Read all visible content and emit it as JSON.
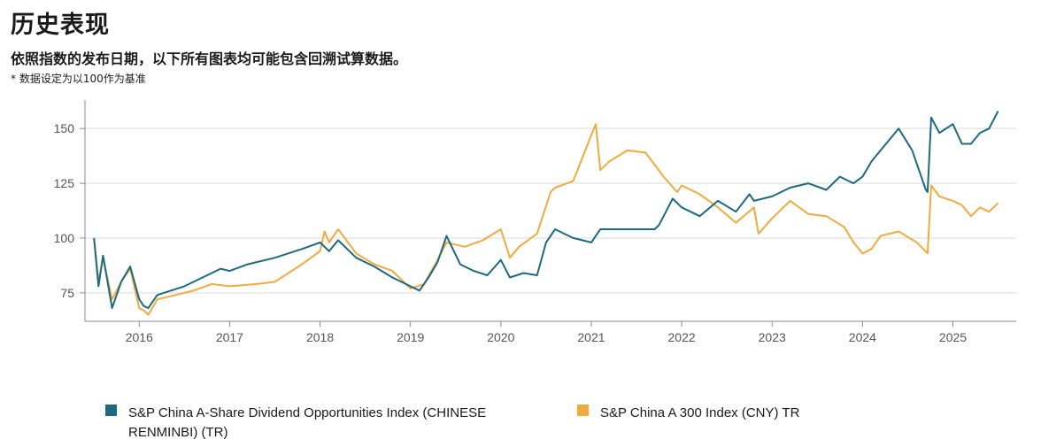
{
  "header": {
    "title": "历史表现",
    "subtitle": "依照指数的发布日期，以下所有图表均可能包含回溯试算数据。",
    "note": "* 数据设定为以100作为基准"
  },
  "chart_data": {
    "type": "line",
    "ylim": [
      62,
      163
    ],
    "xlim": [
      2015.4,
      2025.7
    ],
    "yticks": [
      75,
      100,
      125,
      150
    ],
    "xticks": [
      2016,
      2017,
      2018,
      2019,
      2020,
      2021,
      2022,
      2023,
      2024,
      2025
    ],
    "xticklabels": [
      "2016",
      "2017",
      "2018",
      "2019",
      "2020",
      "2021",
      "2022",
      "2023",
      "2024",
      "2025"
    ],
    "grid": "horizontal",
    "legend_position": "bottom",
    "series": [
      {
        "name": "S&P China A-Share Dividend Opportunities Index (CHINESE RENMINBI) (TR)",
        "color": "#1d6a80",
        "x": [
          2015.5,
          2015.55,
          2015.6,
          2015.7,
          2015.8,
          2015.9,
          2016.0,
          2016.05,
          2016.1,
          2016.2,
          2016.35,
          2016.5,
          2016.7,
          2016.9,
          2017.0,
          2017.2,
          2017.5,
          2017.8,
          2018.0,
          2018.1,
          2018.2,
          2018.4,
          2018.6,
          2018.8,
          2019.0,
          2019.1,
          2019.2,
          2019.3,
          2019.4,
          2019.55,
          2019.7,
          2019.85,
          2020.0,
          2020.1,
          2020.25,
          2020.4,
          2020.5,
          2020.6,
          2020.8,
          2021.0,
          2021.1,
          2021.3,
          2021.5,
          2021.7,
          2021.75,
          2021.9,
          2022.0,
          2022.2,
          2022.4,
          2022.6,
          2022.75,
          2022.8,
          2023.0,
          2023.2,
          2023.4,
          2023.6,
          2023.75,
          2023.9,
          2024.0,
          2024.1,
          2024.2,
          2024.4,
          2024.55,
          2024.7,
          2024.72,
          2024.76,
          2024.85,
          2025.0,
          2025.1,
          2025.2,
          2025.3,
          2025.4,
          2025.5
        ],
        "values": [
          100,
          78,
          92,
          68,
          80,
          87,
          72,
          69,
          68,
          74,
          76,
          78,
          82,
          86,
          85,
          88,
          91,
          95,
          98,
          94,
          99,
          91,
          87,
          82,
          78,
          76,
          82,
          89,
          101,
          88,
          85,
          83,
          90,
          82,
          84,
          83,
          98,
          104,
          100,
          98,
          104,
          104,
          104,
          104,
          106,
          118,
          114,
          110,
          117,
          112,
          120,
          117,
          119,
          123,
          125,
          122,
          128,
          125,
          128,
          135,
          140,
          150,
          140,
          122,
          121,
          155,
          148,
          152,
          143,
          143,
          148,
          150,
          158
        ]
      },
      {
        "name": "S&P China A 300 Index (CNY) TR",
        "color": "#f0ab3e",
        "x": [
          2015.5,
          2015.55,
          2015.6,
          2015.7,
          2015.8,
          2015.9,
          2016.0,
          2016.05,
          2016.1,
          2016.2,
          2016.4,
          2016.6,
          2016.8,
          2017.0,
          2017.3,
          2017.5,
          2017.8,
          2018.0,
          2018.05,
          2018.1,
          2018.2,
          2018.4,
          2018.6,
          2018.8,
          2019.0,
          2019.15,
          2019.3,
          2019.4,
          2019.6,
          2019.8,
          2020.0,
          2020.1,
          2020.2,
          2020.4,
          2020.55,
          2020.6,
          2020.8,
          2021.0,
          2021.05,
          2021.1,
          2021.2,
          2021.4,
          2021.6,
          2021.8,
          2021.95,
          2022.0,
          2022.2,
          2022.4,
          2022.6,
          2022.8,
          2022.85,
          2023.0,
          2023.2,
          2023.4,
          2023.6,
          2023.8,
          2023.9,
          2024.0,
          2024.1,
          2024.2,
          2024.4,
          2024.6,
          2024.72,
          2024.76,
          2024.85,
          2025.0,
          2025.1,
          2025.2,
          2025.3,
          2025.4,
          2025.5
        ],
        "values": [
          100,
          80,
          91,
          72,
          80,
          86,
          68,
          67,
          65,
          72,
          74,
          76,
          79,
          78,
          79,
          80,
          88,
          94,
          103,
          98,
          104,
          93,
          88,
          85,
          77,
          79,
          90,
          98,
          96,
          99,
          104,
          91,
          96,
          102,
          121,
          123,
          126,
          147,
          152,
          131,
          135,
          140,
          139,
          128,
          121,
          124,
          120,
          114,
          107,
          114,
          102,
          109,
          117,
          111,
          110,
          105,
          98,
          93,
          95,
          101,
          103,
          98,
          93,
          124,
          119,
          117,
          115,
          110,
          114,
          112,
          116
        ]
      }
    ]
  }
}
